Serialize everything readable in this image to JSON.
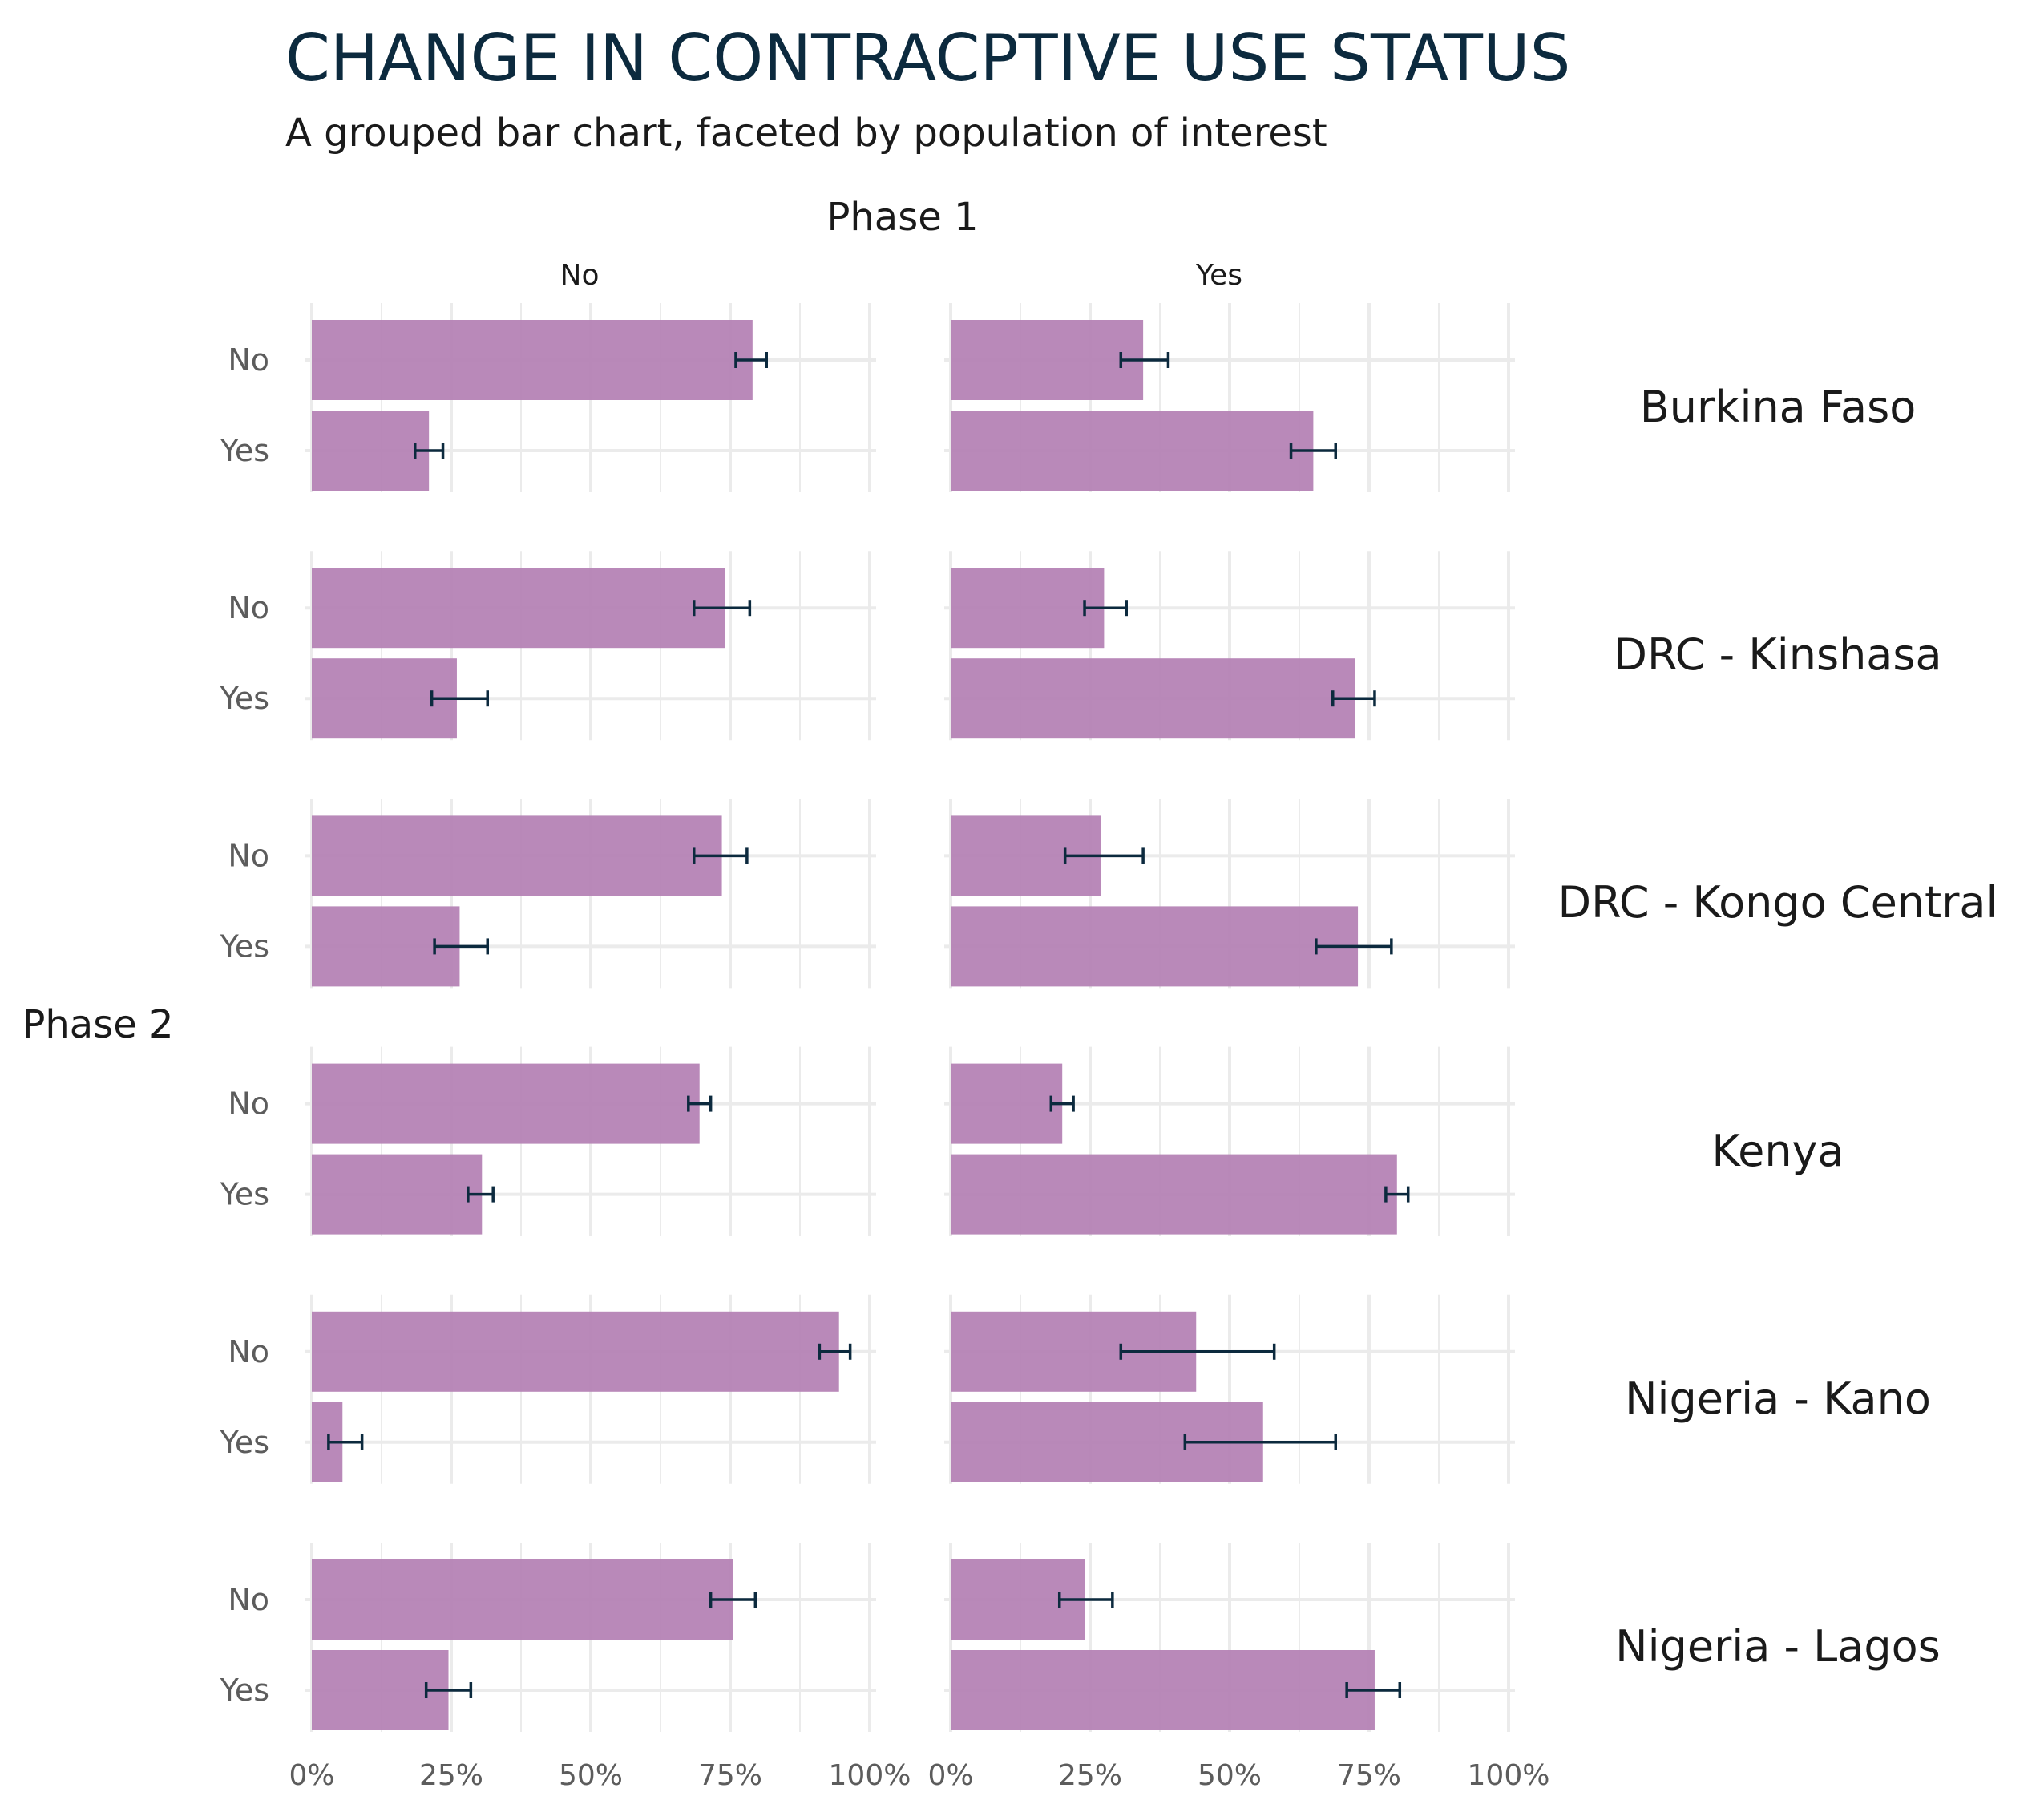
{
  "chart_data": {
    "type": "bar",
    "orientation": "horizontal",
    "title": "CHANGE IN CONTRACPTIVE USE STATUS",
    "subtitle": "A grouped bar chart, faceted by population of interest",
    "column_facet_label": "Phase 1",
    "row_axis_label": "Phase 2",
    "columns": [
      "No",
      "Yes"
    ],
    "rows": [
      "Burkina Faso",
      "DRC - Kinshasa",
      "DRC - Kongo Central",
      "Kenya",
      "Nigeria - Kano",
      "Nigeria - Lagos"
    ],
    "categories": [
      "No",
      "Yes"
    ],
    "x_ticks": [
      "0%",
      "25%",
      "50%",
      "75%",
      "100%"
    ],
    "xlim": [
      0,
      100
    ],
    "grid": true,
    "colors": {
      "bar": "#b583b5",
      "error_bar": "#0c2a3e",
      "grid": "#ebebeb",
      "title": "#0c2a3e"
    },
    "panels": [
      {
        "row": "Burkina Faso",
        "column": "No",
        "values": [
          79,
          21
        ],
        "error_low": [
          76,
          18.5
        ],
        "error_high": [
          81.5,
          23.5
        ]
      },
      {
        "row": "Burkina Faso",
        "column": "Yes",
        "values": [
          34.5,
          65
        ],
        "error_low": [
          30.5,
          61
        ],
        "error_high": [
          39,
          69
        ]
      },
      {
        "row": "DRC - Kinshasa",
        "column": "No",
        "values": [
          74,
          26
        ],
        "error_low": [
          68.5,
          21.5
        ],
        "error_high": [
          78.5,
          31.5
        ]
      },
      {
        "row": "DRC - Kinshasa",
        "column": "Yes",
        "values": [
          27.5,
          72.5
        ],
        "error_low": [
          24,
          68.5
        ],
        "error_high": [
          31.5,
          76
        ]
      },
      {
        "row": "DRC - Kongo Central",
        "column": "No",
        "values": [
          73.5,
          26.5
        ],
        "error_low": [
          68.5,
          22
        ],
        "error_high": [
          78,
          31.5
        ]
      },
      {
        "row": "DRC - Kongo Central",
        "column": "Yes",
        "values": [
          27,
          73
        ],
        "error_low": [
          20.5,
          65.5
        ],
        "error_high": [
          34.5,
          79
        ]
      },
      {
        "row": "Kenya",
        "column": "No",
        "values": [
          69.5,
          30.5
        ],
        "error_low": [
          67.5,
          28
        ],
        "error_high": [
          71.5,
          32.5
        ]
      },
      {
        "row": "Kenya",
        "column": "Yes",
        "values": [
          20,
          80
        ],
        "error_low": [
          18,
          78
        ],
        "error_high": [
          22,
          82
        ]
      },
      {
        "row": "Nigeria - Kano",
        "column": "No",
        "values": [
          94.5,
          5.5
        ],
        "error_low": [
          91,
          3
        ],
        "error_high": [
          96.5,
          9
        ]
      },
      {
        "row": "Nigeria - Kano",
        "column": "Yes",
        "values": [
          44,
          56
        ],
        "error_low": [
          30.5,
          42
        ],
        "error_high": [
          58,
          69
        ]
      },
      {
        "row": "Nigeria - Lagos",
        "column": "No",
        "values": [
          75.5,
          24.5
        ],
        "error_low": [
          71.5,
          20.5
        ],
        "error_high": [
          79.5,
          28.5
        ]
      },
      {
        "row": "Nigeria - Lagos",
        "column": "Yes",
        "values": [
          24,
          76
        ],
        "error_low": [
          19.5,
          71
        ],
        "error_high": [
          29,
          80.5
        ]
      }
    ]
  }
}
